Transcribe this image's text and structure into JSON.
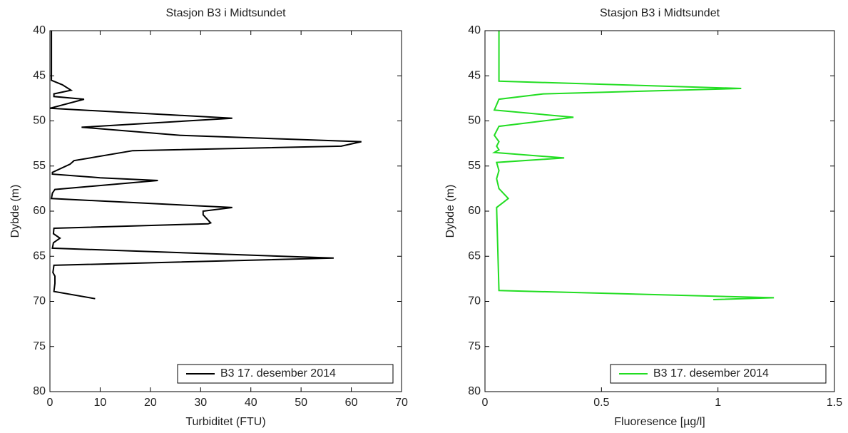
{
  "chart_data": [
    {
      "type": "line",
      "title": "Stasjon B3 i Midtsundet",
      "xlabel": "Turbiditet (FTU)",
      "ylabel": "Dybde (m)",
      "xlim": [
        0,
        70
      ],
      "ylim": [
        40,
        80
      ],
      "y_reversed": true,
      "xticks": [
        0,
        10,
        20,
        30,
        40,
        50,
        60,
        70
      ],
      "yticks": [
        40,
        45,
        50,
        55,
        60,
        65,
        70,
        75,
        80
      ],
      "legend": "lower right",
      "series": [
        {
          "name": "B3 17. desember 2014",
          "color": "#000000",
          "x": [
            0.3,
            0.3,
            2.5,
            4.2,
            0.8,
            0.8,
            6.8,
            0,
            36.3,
            6.3,
            26,
            62,
            58,
            16.5,
            4.8,
            4,
            0.5,
            0.5,
            10,
            21.5,
            1,
            0.5,
            0.3,
            36.3,
            30.5,
            30.5,
            32,
            31.5,
            0.8,
            0.7,
            2,
            0.7,
            0.5,
            56.5,
            0.8,
            0.6,
            1,
            1,
            0.8,
            9
          ],
          "y": [
            40,
            45.5,
            46,
            46.6,
            47,
            47.3,
            47.6,
            48.6,
            49.7,
            50.7,
            51.6,
            52.3,
            52.8,
            53.3,
            54.4,
            54.8,
            55.7,
            55.9,
            56.3,
            56.6,
            57.6,
            58,
            58.6,
            59.6,
            60,
            60.4,
            61.3,
            61.4,
            61.9,
            62.5,
            63,
            63.5,
            64.1,
            65.2,
            66,
            66.8,
            67.2,
            68,
            68.9,
            69.7
          ]
        }
      ]
    },
    {
      "type": "line",
      "title": "Stasjon B3 i Midtsundet",
      "xlabel": "Fluoresence [µg/l]",
      "ylabel": "Dybde (m)",
      "xlim": [
        0,
        1.5
      ],
      "ylim": [
        40,
        80
      ],
      "y_reversed": true,
      "xticks": [
        0,
        0.5,
        1,
        1.5
      ],
      "yticks": [
        40,
        45,
        50,
        55,
        60,
        65,
        70,
        75,
        80
      ],
      "legend": "lower right",
      "series": [
        {
          "name": "B3 17. desember 2014",
          "color": "#22dd22",
          "x": [
            0.06,
            0.06,
            1.1,
            0.25,
            0.06,
            0.04,
            0.38,
            0.06,
            0.04,
            0.06,
            0.05,
            0.06,
            0.04,
            0.34,
            0.05,
            0.06,
            0.05,
            0.06,
            0.1,
            0.05,
            0.06,
            1.24,
            0.98
          ],
          "y": [
            40,
            45.6,
            46.4,
            47,
            47.6,
            48.8,
            49.6,
            50.6,
            51.6,
            52.3,
            52.8,
            53.2,
            53.5,
            54.1,
            54.6,
            55.5,
            56.4,
            57.5,
            58.6,
            59.6,
            68.8,
            69.6,
            69.8
          ]
        }
      ]
    }
  ]
}
